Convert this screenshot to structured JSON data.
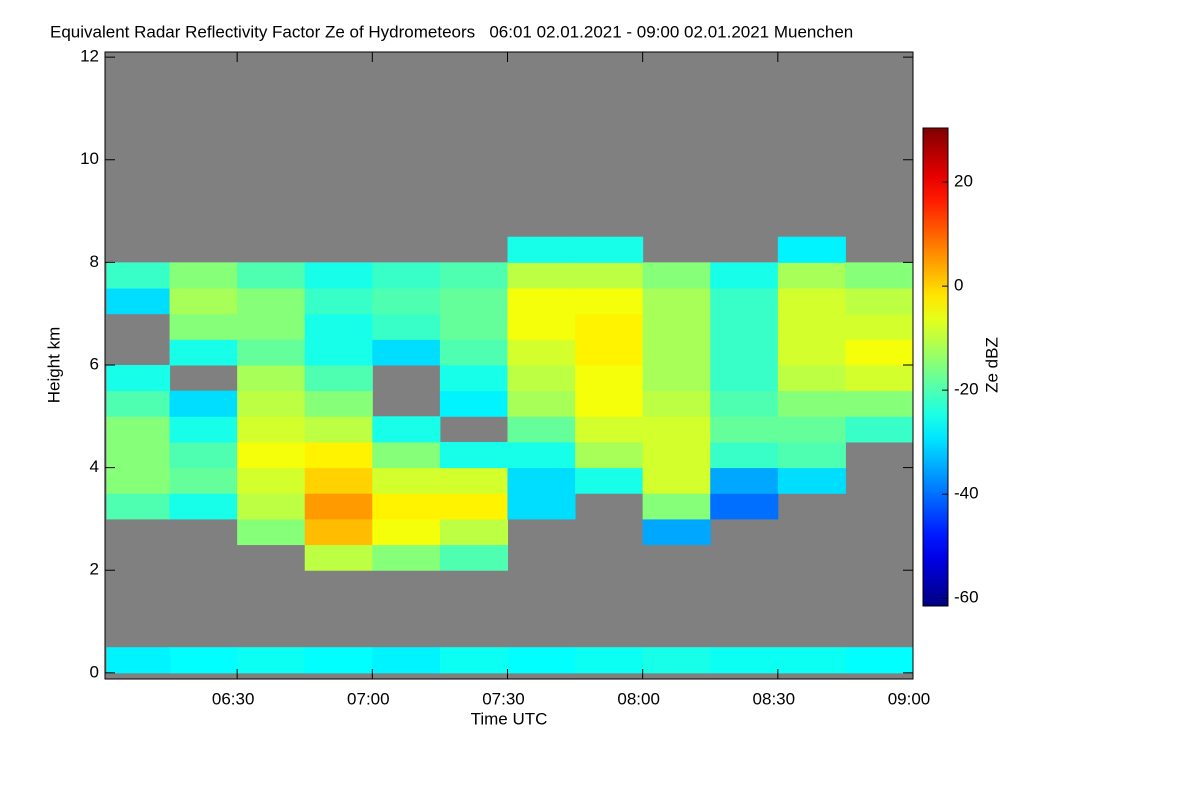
{
  "chart_data": {
    "type": "heatmap",
    "title": "Equivalent Radar Reflectivity Factor Ze of Hydrometeors   06:01 02.01.2021 - 09:00 02.01.2021 Muenchen",
    "x_label": "Time UTC",
    "y_label": "Height km",
    "colorbar_label": "Ze dBZ",
    "colormap": "jet",
    "missing_color": "#808080",
    "x_bins": [
      1,
      15,
      30,
      45,
      60,
      75,
      90,
      105,
      120,
      135,
      150,
      165,
      180
    ],
    "y_bins": [
      0,
      0.5,
      1,
      1.5,
      2,
      2.5,
      3,
      3.5,
      4,
      4.5,
      5,
      5.5,
      6,
      6.5,
      7,
      7.5,
      8,
      8.5
    ],
    "values": [
      [
        -28,
        -27,
        -26,
        -27,
        -28,
        -26,
        -27,
        -26,
        -25,
        -26,
        -26,
        -27
      ],
      [
        null,
        null,
        null,
        null,
        null,
        null,
        null,
        null,
        null,
        null,
        null,
        null
      ],
      [
        null,
        null,
        null,
        null,
        null,
        null,
        null,
        null,
        null,
        null,
        null,
        null
      ],
      [
        null,
        null,
        null,
        null,
        null,
        null,
        null,
        null,
        null,
        null,
        null,
        null
      ],
      [
        null,
        null,
        null,
        -10,
        -15,
        -20,
        null,
        null,
        null,
        null,
        null,
        null
      ],
      [
        null,
        null,
        -15,
        2,
        -5,
        -10,
        null,
        null,
        -35,
        null,
        null,
        null
      ],
      [
        -20,
        -25,
        -10,
        5,
        -3,
        -3,
        -30,
        null,
        -15,
        -40,
        null,
        null
      ],
      [
        -15,
        -18,
        -8,
        0,
        -8,
        -8,
        -30,
        -25,
        -8,
        -35,
        -30,
        null
      ],
      [
        -15,
        -20,
        -5,
        -3,
        -15,
        -25,
        -25,
        -12,
        -8,
        -22,
        -20,
        null
      ],
      [
        -15,
        -25,
        -8,
        -10,
        -25,
        null,
        -18,
        -8,
        -8,
        -18,
        -18,
        -22
      ],
      [
        -20,
        -30,
        -10,
        -15,
        null,
        -28,
        -12,
        -5,
        -10,
        -20,
        -15,
        -15
      ],
      [
        -25,
        null,
        -12,
        -20,
        null,
        -25,
        -10,
        -5,
        -12,
        -22,
        -10,
        -8
      ],
      [
        null,
        -25,
        -18,
        -25,
        -30,
        -20,
        -8,
        -3,
        -12,
        -22,
        -8,
        -5
      ],
      [
        null,
        -15,
        -15,
        -25,
        -22,
        -18,
        -5,
        -3,
        -12,
        -22,
        -8,
        -8
      ],
      [
        -30,
        -12,
        -15,
        -22,
        -20,
        -18,
        -5,
        -5,
        -12,
        -22,
        -8,
        -10
      ],
      [
        -22,
        -15,
        -20,
        -25,
        -22,
        -20,
        -10,
        -10,
        -15,
        -25,
        -12,
        -15
      ],
      [
        null,
        null,
        null,
        null,
        null,
        null,
        -25,
        -25,
        null,
        null,
        -28,
        null
      ]
    ],
    "xlim": [
      1,
      180
    ],
    "xticks": [
      {
        "value": 30,
        "label": "06:30"
      },
      {
        "value": 60,
        "label": "07:00"
      },
      {
        "value": 90,
        "label": "07:30"
      },
      {
        "value": 120,
        "label": "08:00"
      },
      {
        "value": 150,
        "label": "08:30"
      },
      {
        "value": 180,
        "label": "09:00"
      }
    ],
    "ylim": [
      -0.12,
      12.1
    ],
    "yticks": [
      0,
      2,
      4,
      6,
      8,
      10,
      12
    ],
    "clim": [
      -61.5,
      30.4
    ],
    "cticks": [
      -60,
      -40,
      -20,
      0,
      20
    ]
  }
}
